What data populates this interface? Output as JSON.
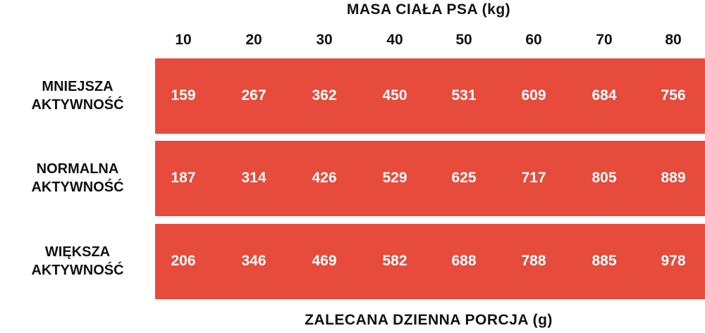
{
  "header": {
    "title": "MASA CIAŁA PSA (kg)"
  },
  "table": {
    "columns": [
      10,
      20,
      30,
      40,
      50,
      60,
      70,
      80
    ],
    "rows": [
      {
        "label": [
          "MNIEJSZA",
          "AKTYWNOŚĆ"
        ],
        "values": [
          159,
          267,
          362,
          450,
          531,
          609,
          684,
          756
        ]
      },
      {
        "label": [
          "NORMALNA",
          "AKTYWNOŚĆ"
        ],
        "values": [
          187,
          314,
          426,
          529,
          625,
          717,
          805,
          889
        ]
      },
      {
        "label": [
          "WIĘKSZA",
          "AKTYWNOŚĆ"
        ],
        "values": [
          206,
          346,
          469,
          582,
          688,
          788,
          885,
          978
        ]
      }
    ]
  },
  "footer": {
    "text": "ZALECANA DZIENNA PORCJA (g)"
  }
}
